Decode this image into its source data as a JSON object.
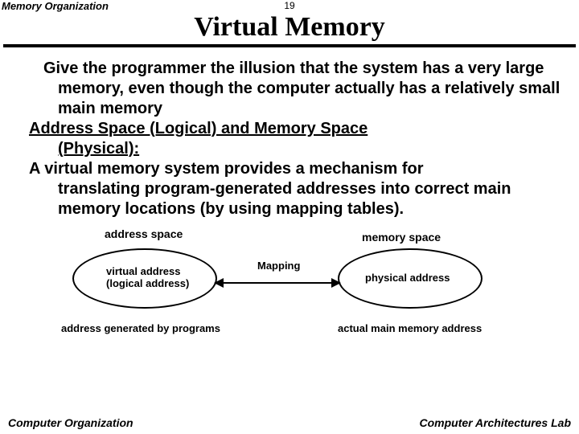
{
  "header": {
    "left": "Memory Organization",
    "page": "19",
    "title": "Virtual Memory"
  },
  "body": {
    "p1": "Give the programmer the illusion that the system has a very large memory, even though the computer actually has a relatively small main memory",
    "p2a": "Address Space (Logical)  and Memory Space",
    "p2b": "(Physical):",
    "p3a": "A virtual memory system provides a mechanism for",
    "p3b": "translating program-generated addresses into correct main memory locations (by using mapping tables)."
  },
  "diagram": {
    "addr_space": "address space",
    "mem_space": "memory space",
    "virtual_label_l1": "virtual address",
    "virtual_label_l2": "(logical address)",
    "physical_label": "physical address",
    "mapping": "Mapping",
    "caption_left": "address generated by programs",
    "caption_right": "actual main memory address"
  },
  "footer": {
    "left": "Computer Organization",
    "right": "Computer Architectures Lab"
  },
  "colors": {
    "background": "#ffffff",
    "text": "#000000",
    "rule": "#000000"
  }
}
